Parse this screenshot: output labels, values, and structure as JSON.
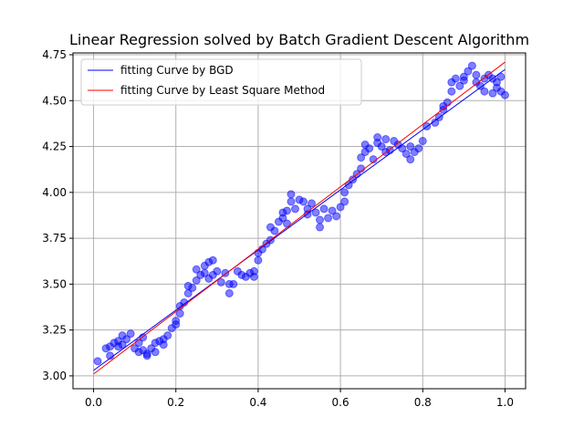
{
  "chart_data": {
    "type": "scatter",
    "title": "Linear Regression solved by Batch Gradient Descent Algorithm",
    "xlabel": "",
    "ylabel": "",
    "xlim": [
      -0.05,
      1.05
    ],
    "ylim": [
      2.93,
      4.76
    ],
    "grid": true,
    "legend_position": "top-left",
    "x_ticks": [
      0.0,
      0.2,
      0.4,
      0.6,
      0.8,
      1.0
    ],
    "x_tick_labels": [
      "0.0",
      "0.2",
      "0.4",
      "0.6",
      "0.8",
      "1.0"
    ],
    "y_ticks": [
      3.0,
      3.25,
      3.5,
      3.75,
      4.0,
      4.25,
      4.5,
      4.75
    ],
    "y_tick_labels": [
      "3.00",
      "3.25",
      "3.50",
      "3.75",
      "4.00",
      "4.25",
      "4.50",
      "4.75"
    ],
    "scatter_color": "#0000ff",
    "scatter_alpha": 0.5,
    "points": [
      [
        0.01,
        3.08
      ],
      [
        0.03,
        3.15
      ],
      [
        0.04,
        3.11
      ],
      [
        0.04,
        3.16
      ],
      [
        0.05,
        3.18
      ],
      [
        0.06,
        3.19
      ],
      [
        0.06,
        3.16
      ],
      [
        0.07,
        3.22
      ],
      [
        0.07,
        3.17
      ],
      [
        0.08,
        3.2
      ],
      [
        0.09,
        3.23
      ],
      [
        0.1,
        3.15
      ],
      [
        0.11,
        3.18
      ],
      [
        0.11,
        3.13
      ],
      [
        0.12,
        3.21
      ],
      [
        0.12,
        3.14
      ],
      [
        0.13,
        3.12
      ],
      [
        0.13,
        3.11
      ],
      [
        0.14,
        3.15
      ],
      [
        0.15,
        3.18
      ],
      [
        0.15,
        3.13
      ],
      [
        0.16,
        3.19
      ],
      [
        0.17,
        3.2
      ],
      [
        0.17,
        3.17
      ],
      [
        0.18,
        3.22
      ],
      [
        0.19,
        3.26
      ],
      [
        0.2,
        3.3
      ],
      [
        0.2,
        3.28
      ],
      [
        0.21,
        3.34
      ],
      [
        0.21,
        3.38
      ],
      [
        0.22,
        3.4
      ],
      [
        0.23,
        3.45
      ],
      [
        0.23,
        3.49
      ],
      [
        0.24,
        3.48
      ],
      [
        0.25,
        3.52
      ],
      [
        0.25,
        3.58
      ],
      [
        0.26,
        3.55
      ],
      [
        0.27,
        3.56
      ],
      [
        0.27,
        3.6
      ],
      [
        0.28,
        3.62
      ],
      [
        0.28,
        3.53
      ],
      [
        0.29,
        3.63
      ],
      [
        0.29,
        3.55
      ],
      [
        0.3,
        3.57
      ],
      [
        0.31,
        3.51
      ],
      [
        0.32,
        3.56
      ],
      [
        0.33,
        3.5
      ],
      [
        0.33,
        3.45
      ],
      [
        0.34,
        3.5
      ],
      [
        0.35,
        3.57
      ],
      [
        0.36,
        3.55
      ],
      [
        0.37,
        3.54
      ],
      [
        0.38,
        3.56
      ],
      [
        0.39,
        3.57
      ],
      [
        0.39,
        3.54
      ],
      [
        0.4,
        3.63
      ],
      [
        0.4,
        3.67
      ],
      [
        0.41,
        3.69
      ],
      [
        0.42,
        3.72
      ],
      [
        0.43,
        3.74
      ],
      [
        0.43,
        3.81
      ],
      [
        0.44,
        3.79
      ],
      [
        0.45,
        3.84
      ],
      [
        0.46,
        3.86
      ],
      [
        0.46,
        3.89
      ],
      [
        0.47,
        3.9
      ],
      [
        0.47,
        3.83
      ],
      [
        0.48,
        3.95
      ],
      [
        0.48,
        3.99
      ],
      [
        0.49,
        3.91
      ],
      [
        0.5,
        3.96
      ],
      [
        0.51,
        3.95
      ],
      [
        0.52,
        3.91
      ],
      [
        0.52,
        3.88
      ],
      [
        0.53,
        3.94
      ],
      [
        0.54,
        3.89
      ],
      [
        0.55,
        3.85
      ],
      [
        0.55,
        3.81
      ],
      [
        0.56,
        3.91
      ],
      [
        0.57,
        3.86
      ],
      [
        0.58,
        3.9
      ],
      [
        0.59,
        3.87
      ],
      [
        0.6,
        3.92
      ],
      [
        0.61,
        3.95
      ],
      [
        0.61,
        4.0
      ],
      [
        0.62,
        4.04
      ],
      [
        0.63,
        4.07
      ],
      [
        0.64,
        4.1
      ],
      [
        0.65,
        4.13
      ],
      [
        0.65,
        4.19
      ],
      [
        0.66,
        4.22
      ],
      [
        0.66,
        4.26
      ],
      [
        0.67,
        4.24
      ],
      [
        0.68,
        4.18
      ],
      [
        0.69,
        4.27
      ],
      [
        0.69,
        4.3
      ],
      [
        0.7,
        4.25
      ],
      [
        0.71,
        4.22
      ],
      [
        0.71,
        4.29
      ],
      [
        0.72,
        4.23
      ],
      [
        0.73,
        4.28
      ],
      [
        0.74,
        4.26
      ],
      [
        0.75,
        4.24
      ],
      [
        0.76,
        4.21
      ],
      [
        0.77,
        4.18
      ],
      [
        0.77,
        4.25
      ],
      [
        0.78,
        4.22
      ],
      [
        0.79,
        4.24
      ],
      [
        0.8,
        4.28
      ],
      [
        0.81,
        4.36
      ],
      [
        0.83,
        4.38
      ],
      [
        0.84,
        4.41
      ],
      [
        0.85,
        4.45
      ],
      [
        0.85,
        4.47
      ],
      [
        0.86,
        4.49
      ],
      [
        0.87,
        4.55
      ],
      [
        0.87,
        4.6
      ],
      [
        0.88,
        4.62
      ],
      [
        0.89,
        4.58
      ],
      [
        0.9,
        4.63
      ],
      [
        0.9,
        4.61
      ],
      [
        0.91,
        4.66
      ],
      [
        0.92,
        4.69
      ],
      [
        0.93,
        4.64
      ],
      [
        0.93,
        4.6
      ],
      [
        0.94,
        4.58
      ],
      [
        0.95,
        4.55
      ],
      [
        0.95,
        4.62
      ],
      [
        0.96,
        4.64
      ],
      [
        0.97,
        4.54
      ],
      [
        0.97,
        4.62
      ],
      [
        0.98,
        4.57
      ],
      [
        0.98,
        4.6
      ],
      [
        0.99,
        4.63
      ],
      [
        0.99,
        4.55
      ],
      [
        1.0,
        4.53
      ]
    ],
    "series": [
      {
        "name": "fitting Curve by BGD",
        "color": "#0000ff",
        "x": [
          0.0,
          1.0
        ],
        "y": [
          3.03,
          4.67
        ]
      },
      {
        "name": "fitting Curve by Least Square Method",
        "color": "#ff0000",
        "x": [
          0.0,
          1.0
        ],
        "y": [
          3.01,
          4.71
        ]
      }
    ]
  }
}
